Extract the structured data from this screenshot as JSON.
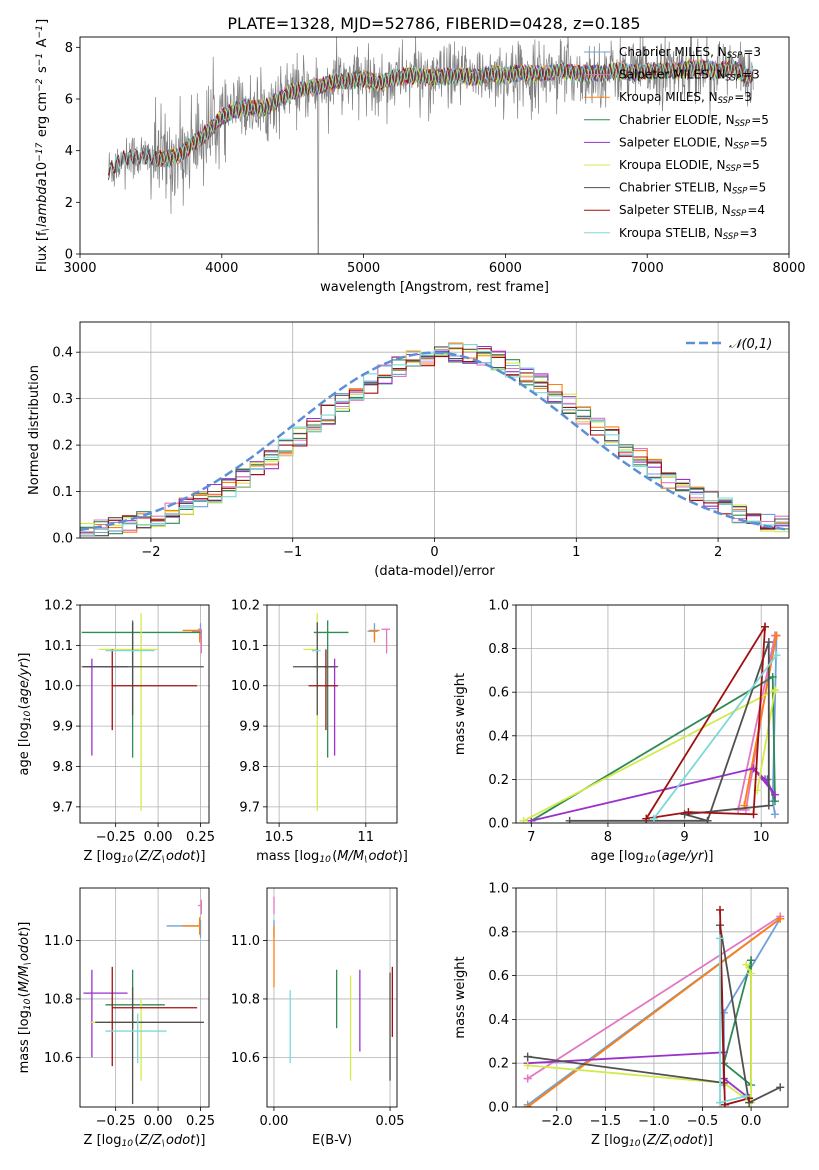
{
  "figure": {
    "title": "PLATE=1328, MJD=52786, FIBERID=0428, z=0.185"
  },
  "model_colors": {
    "Chabrier MILES": "#6fa0d8",
    "Salpeter MILES": "#e377c2",
    "Kroupa MILES": "#ff7f0e",
    "Chabrier ELODIE": "#2e8b57",
    "Salpeter ELODIE": "#9932cc",
    "Kroupa ELODIE": "#d4ea4a",
    "Chabrier STELIB": "#505050",
    "Salpeter STELIB": "#a01010",
    "Kroupa STELIB": "#7fd8d8"
  },
  "chart_data": [
    {
      "id": "spectrum",
      "type": "line",
      "title": "PLATE=1328, MJD=52786, FIBERID=0428, z=0.185",
      "xlabel": "wavelength [Angstrom, rest frame]",
      "ylabel": "Flux [f$_\\lambda$10$^{-17}$ erg cm$^{-2}$ s$^{-1}$ A$^{-1}$]",
      "xlim": [
        3000,
        8000
      ],
      "ylim": [
        0,
        8.4
      ],
      "xticks": [
        3000,
        4000,
        5000,
        6000,
        7000,
        8000
      ],
      "yticks": [
        0,
        2,
        4,
        6,
        8
      ],
      "grid": false,
      "legend": "top-right",
      "series": [
        {
          "name": "Chabrier MILES, N$_{SSP}$=3",
          "model": "Chabrier MILES"
        },
        {
          "name": "Salpeter MILES, N$_{SSP}$=3",
          "model": "Salpeter MILES"
        },
        {
          "name": "Kroupa MILES, N$_{SSP}$=3",
          "model": "Kroupa MILES"
        },
        {
          "name": "Chabrier ELODIE, N$_{SSP}$=5",
          "model": "Chabrier ELODIE"
        },
        {
          "name": "Salpeter ELODIE, N$_{SSP}$=5",
          "model": "Salpeter ELODIE"
        },
        {
          "name": "Kroupa ELODIE, N$_{SSP}$=5",
          "model": "Kroupa ELODIE"
        },
        {
          "name": "Chabrier STELIB, N$_{SSP}$=5",
          "model": "Chabrier STELIB"
        },
        {
          "name": "Salpeter STELIB, N$_{SSP}$=4",
          "model": "Salpeter STELIB"
        },
        {
          "name": "Kroupa STELIB, N$_{SSP}$=3",
          "model": "Kroupa STELIB"
        }
      ],
      "observed_color": "#808080",
      "continuum": {
        "x": [
          3200,
          3300,
          3400,
          3500,
          3600,
          3700,
          3800,
          3900,
          4000,
          4100,
          4200,
          4300,
          4400,
          4500,
          4600,
          4700,
          4800,
          4900,
          5000,
          5100,
          5200,
          5300,
          5400,
          5500,
          5600,
          5700,
          5800,
          5900,
          6000,
          6100,
          6200,
          6300,
          6400,
          6500,
          6600,
          6700,
          6800,
          6900,
          7000,
          7100,
          7200,
          7300,
          7400,
          7500,
          7600,
          7700,
          7750
        ],
        "y": [
          3.2,
          3.7,
          3.8,
          3.7,
          3.7,
          3.8,
          4.3,
          4.7,
          5.3,
          5.6,
          5.7,
          5.6,
          6.0,
          6.3,
          6.4,
          6.5,
          6.7,
          6.7,
          6.8,
          6.6,
          6.8,
          6.9,
          6.9,
          6.8,
          6.9,
          6.9,
          6.8,
          7.0,
          6.9,
          7.0,
          7.0,
          7.0,
          7.1,
          7.0,
          7.0,
          7.0,
          7.1,
          7.0,
          7.1,
          7.1,
          7.1,
          7.2,
          7.2,
          7.1,
          7.2,
          6.9,
          6.9
        ]
      }
    },
    {
      "id": "residuals",
      "type": "line",
      "xlabel": "(data-model)/error",
      "ylabel": "Normed distribution",
      "xlim": [
        -2.5,
        2.5
      ],
      "ylim": [
        0,
        0.465
      ],
      "xticks": [
        -2,
        -1,
        0,
        1,
        2
      ],
      "yticks": [
        0.0,
        0.1,
        0.2,
        0.3,
        0.4
      ],
      "grid": true,
      "legend": "top-right",
      "gaussian": {
        "name": "$\\mathcal{N}(0,1)$",
        "mu": 0,
        "sigma": 1,
        "color": "#5b8fd6"
      },
      "bins": {
        "start": -2.5,
        "width": 0.1,
        "count": 50
      }
    },
    {
      "id": "Z-age",
      "type": "scatter",
      "xlabel": "Z [log$_{10}$($Z/Z_\\odot$)]",
      "ylabel": "age  [log$_{10}$($age/yr$)]",
      "xlim": [
        -0.46,
        0.3
      ],
      "ylim": [
        9.66,
        10.2
      ],
      "xticks": [
        -0.25,
        0.0,
        0.25
      ],
      "xtick_labels": [
        "−0.25",
        "0.00",
        "0.25"
      ],
      "yticks": [
        9.7,
        9.8,
        9.9,
        10.0,
        10.1,
        10.2
      ],
      "grid": true,
      "points": [
        {
          "model": "Chabrier MILES",
          "x": 0.25,
          "y": 10.135,
          "xerr": [
            0.05,
            0.0
          ],
          "yerr": [
            0.02,
            0.02
          ]
        },
        {
          "model": "Salpeter MILES",
          "x": 0.255,
          "y": 10.14,
          "xerr": [
            0.02,
            0.0
          ],
          "yerr": [
            0.06,
            0.0
          ]
        },
        {
          "model": "Kroupa MILES",
          "x": 0.245,
          "y": 10.137,
          "xerr": [
            0.1,
            0.0
          ],
          "yerr": [
            0.03,
            0.0
          ]
        },
        {
          "model": "Chabrier ELODIE",
          "x": -0.15,
          "y": 10.132,
          "xerr": [
            0.3,
            0.4
          ],
          "yerr": [
            0.31,
            0.03
          ]
        },
        {
          "model": "Salpeter ELODIE",
          "x": -0.39,
          "y": 10.047,
          "xerr": [
            0.05,
            0.21
          ],
          "yerr": [
            0.22,
            0.02
          ]
        },
        {
          "model": "Kroupa ELODIE",
          "x": -0.1,
          "y": 10.09,
          "xerr": [
            0.25,
            0.1
          ],
          "yerr": [
            0.4,
            0.09
          ]
        },
        {
          "model": "Chabrier STELIB",
          "x": -0.15,
          "y": 10.047,
          "xerr": [
            0.3,
            0.42
          ],
          "yerr": [
            0.12,
            0.11
          ]
        },
        {
          "model": "Salpeter STELIB",
          "x": -0.27,
          "y": 10.0,
          "xerr": [
            0.0,
            0.5
          ],
          "yerr": [
            0.11,
            0.09
          ]
        },
        {
          "model": "Kroupa STELIB",
          "x": -0.12,
          "y": 10.087,
          "xerr": [
            0.19,
            0.1
          ],
          "yerr": [
            0.0,
            0.0
          ]
        }
      ]
    },
    {
      "id": "mass-age",
      "type": "scatter",
      "xlabel": "mass [log$_{10}$($M/M_\\odot$)]",
      "ylabel": "",
      "xlim": [
        10.43,
        11.18
      ],
      "ylim": [
        9.66,
        10.2
      ],
      "xticks": [
        10.5,
        11.0
      ],
      "yticks": [
        9.7,
        9.8,
        9.9,
        10.0,
        10.1,
        10.2
      ],
      "grid": true,
      "points": [
        {
          "model": "Chabrier MILES",
          "x": 11.05,
          "y": 10.135,
          "xerr": [
            0.04,
            0.02
          ],
          "yerr": [
            0.02,
            0.02
          ]
        },
        {
          "model": "Salpeter MILES",
          "x": 11.12,
          "y": 10.14,
          "xerr": [
            0.03,
            0.02
          ],
          "yerr": [
            0.06,
            0.0
          ]
        },
        {
          "model": "Kroupa MILES",
          "x": 11.05,
          "y": 10.137,
          "xerr": [
            0.03,
            0.03
          ],
          "yerr": [
            0.03,
            0.0
          ]
        },
        {
          "model": "Chabrier ELODIE",
          "x": 10.78,
          "y": 10.132,
          "xerr": [
            0.08,
            0.12
          ],
          "yerr": [
            0.31,
            0.03
          ]
        },
        {
          "model": "Salpeter ELODIE",
          "x": 10.82,
          "y": 10.047,
          "xerr": [
            0.12,
            0.0
          ],
          "yerr": [
            0.22,
            0.02
          ]
        },
        {
          "model": "Kroupa ELODIE",
          "x": 10.72,
          "y": 10.09,
          "xerr": [
            0.08,
            0.0
          ],
          "yerr": [
            0.4,
            0.09
          ]
        },
        {
          "model": "Chabrier STELIB",
          "x": 10.72,
          "y": 10.047,
          "xerr": [
            0.14,
            0.12
          ],
          "yerr": [
            0.12,
            0.11
          ]
        },
        {
          "model": "Salpeter STELIB",
          "x": 10.77,
          "y": 10.0,
          "xerr": [
            0.1,
            0.07
          ],
          "yerr": [
            0.11,
            0.09
          ]
        },
        {
          "model": "Kroupa STELIB",
          "x": 10.69,
          "y": 10.087,
          "xerr": [
            0.0,
            0.05
          ],
          "yerr": [
            0.0,
            0.0
          ]
        }
      ]
    },
    {
      "id": "weight-age",
      "type": "line",
      "xlabel": "age  [log$_{10}$($age/yr$)]",
      "ylabel": "mass weight",
      "xlim": [
        6.8,
        10.35
      ],
      "ylim": [
        0,
        1.0
      ],
      "xticks": [
        7,
        8,
        9,
        10
      ],
      "yticks": [
        0.0,
        0.2,
        0.4,
        0.6,
        0.8,
        1.0
      ],
      "grid": true,
      "series": [
        {
          "model": "Chabrier MILES",
          "x": [
            10.2,
            10.15,
            10.18
          ],
          "y": [
            0.86,
            0.1,
            0.04
          ]
        },
        {
          "model": "Salpeter MILES",
          "x": [
            10.18,
            9.8,
            9.7,
            10.18
          ],
          "y": [
            0.86,
            0.06,
            0.06,
            0.86
          ]
        },
        {
          "model": "Kroupa MILES",
          "x": [
            10.2,
            9.78,
            10.2
          ],
          "y": [
            0.86,
            0.08,
            0.86
          ]
        },
        {
          "model": "Chabrier ELODIE",
          "x": [
            7.0,
            10.15,
            10.18,
            10.08
          ],
          "y": [
            0.01,
            0.67,
            0.1,
            0.2
          ]
        },
        {
          "model": "Salpeter ELODIE",
          "x": [
            7.0,
            9.9,
            10.18,
            10.05,
            9.9
          ],
          "y": [
            0.01,
            0.25,
            0.13,
            0.2,
            0.25
          ]
        },
        {
          "model": "Kroupa ELODIE",
          "x": [
            6.9,
            10.18,
            9.95,
            10.18
          ],
          "y": [
            0.01,
            0.61,
            0.15,
            0.61
          ]
        },
        {
          "model": "Chabrier STELIB",
          "x": [
            7.5,
            9.3,
            10.1,
            10.1,
            9.0,
            9.3
          ],
          "y": [
            0.01,
            0.01,
            0.83,
            0.08,
            0.04,
            0.01
          ]
        },
        {
          "model": "Salpeter STELIB",
          "x": [
            10.05,
            8.5,
            9.05,
            9.9,
            10.05
          ],
          "y": [
            0.9,
            0.02,
            0.05,
            0.04,
            0.9
          ]
        },
        {
          "model": "Kroupa STELIB",
          "x": [
            10.2,
            8.6,
            10.2
          ],
          "y": [
            0.77,
            0.02,
            0.77
          ]
        }
      ]
    },
    {
      "id": "Z-mass",
      "type": "scatter",
      "xlabel": "Z [log$_{10}$($Z/Z_\\odot$)]",
      "ylabel": "mass [log$_{10}$($M/M_\\odot$)]",
      "xlim": [
        -0.46,
        0.3
      ],
      "ylim": [
        10.43,
        11.18
      ],
      "xticks": [
        -0.25,
        0.0,
        0.25
      ],
      "xtick_labels": [
        "−0.25",
        "0.00",
        "0.25"
      ],
      "yticks": [
        10.6,
        10.8,
        11.0
      ],
      "grid": true,
      "points": [
        {
          "model": "Chabrier MILES",
          "x": 0.25,
          "y": 11.05,
          "xerr": [
            0.2,
            0.0
          ],
          "yerr": [
            0.04,
            0.02
          ]
        },
        {
          "model": "Salpeter MILES",
          "x": 0.255,
          "y": 11.12,
          "xerr": [
            0.02,
            0.0
          ],
          "yerr": [
            0.03,
            0.02
          ]
        },
        {
          "model": "Kroupa MILES",
          "x": 0.245,
          "y": 11.05,
          "xerr": [
            0.1,
            0.0
          ],
          "yerr": [
            0.03,
            0.03
          ]
        },
        {
          "model": "Chabrier ELODIE",
          "x": -0.15,
          "y": 10.78,
          "xerr": [
            0.16,
            0.19
          ],
          "yerr": [
            0.08,
            0.12
          ]
        },
        {
          "model": "Salpeter ELODIE",
          "x": -0.39,
          "y": 10.82,
          "xerr": [
            0.05,
            0.21
          ],
          "yerr": [
            0.22,
            0.08
          ]
        },
        {
          "model": "Kroupa ELODIE",
          "x": -0.1,
          "y": 10.72,
          "xerr": [
            0.3,
            0.03
          ],
          "yerr": [
            0.2,
            0.08
          ]
        },
        {
          "model": "Chabrier STELIB",
          "x": -0.15,
          "y": 10.72,
          "xerr": [
            0.22,
            0.42
          ],
          "yerr": [
            0.28,
            0.12
          ]
        },
        {
          "model": "Salpeter STELIB",
          "x": -0.27,
          "y": 10.77,
          "xerr": [
            0.0,
            0.5
          ],
          "yerr": [
            0.2,
            0.14
          ]
        },
        {
          "model": "Kroupa STELIB",
          "x": -0.12,
          "y": 10.69,
          "xerr": [
            0.19,
            0.17
          ],
          "yerr": [
            0.11,
            0.06
          ]
        }
      ]
    },
    {
      "id": "ebv-mass",
      "type": "scatter",
      "xlabel": "E(B-V)",
      "ylabel": "",
      "xlim": [
        -0.003,
        0.053
      ],
      "ylim": [
        10.43,
        11.18
      ],
      "xticks": [
        0.0,
        0.05
      ],
      "xtick_labels": [
        "0.00",
        "0.05"
      ],
      "yticks": [
        10.6,
        10.8,
        11.0
      ],
      "grid": true,
      "points": [
        {
          "model": "Chabrier MILES",
          "x": 0.0,
          "y": 11.05,
          "yerr": [
            0.04,
            0.02
          ]
        },
        {
          "model": "Salpeter MILES",
          "x": 0.0,
          "y": 11.12,
          "yerr": [
            0.03,
            0.03
          ]
        },
        {
          "model": "Kroupa MILES",
          "x": 0.0,
          "y": 11.0,
          "yerr": [
            0.16,
            0.05
          ]
        },
        {
          "model": "Chabrier ELODIE",
          "x": 0.027,
          "y": 10.78,
          "yerr": [
            0.08,
            0.12
          ]
        },
        {
          "model": "Salpeter ELODIE",
          "x": 0.037,
          "y": 10.78,
          "yerr": [
            0.16,
            0.12
          ]
        },
        {
          "model": "Kroupa ELODIE",
          "x": 0.033,
          "y": 10.72,
          "yerr": [
            0.2,
            0.16
          ]
        },
        {
          "model": "Chabrier STELIB",
          "x": 0.05,
          "y": 10.72,
          "yerr": [
            0.2,
            0.17
          ]
        },
        {
          "model": "Salpeter STELIB",
          "x": 0.051,
          "y": 10.77,
          "yerr": [
            0.1,
            0.14
          ]
        },
        {
          "model": "Kroupa STELIB",
          "x": 0.007,
          "y": 10.72,
          "yerr": [
            0.14,
            0.11
          ]
        }
      ]
    },
    {
      "id": "weight-Z",
      "type": "line",
      "xlabel": "Z [log$_{10}$($Z/Z_\\odot$)]",
      "ylabel": "mass weight",
      "xlim": [
        -2.42,
        0.38
      ],
      "ylim": [
        0,
        1.0
      ],
      "xticks": [
        -2.0,
        -1.5,
        -1.0,
        -0.5,
        0.0
      ],
      "xtick_labels": [
        "−2.0",
        "−1.5",
        "−1.0",
        "−0.5",
        "0.0"
      ],
      "yticks": [
        0.0,
        0.2,
        0.4,
        0.6,
        0.8,
        1.0
      ],
      "grid": true,
      "series": [
        {
          "model": "Chabrier MILES",
          "x": [
            -2.3,
            0.3,
            -0.28,
            -0.28
          ],
          "y": [
            0.01,
            0.86,
            0.43,
            0.1
          ]
        },
        {
          "model": "Salpeter MILES",
          "x": [
            -2.3,
            0.3,
            -2.3
          ],
          "y": [
            0.13,
            0.87,
            0.13
          ]
        },
        {
          "model": "Kroupa MILES",
          "x": [
            -2.3,
            0.3,
            -2.3
          ],
          "y": [
            0.0,
            0.86,
            0.0
          ]
        },
        {
          "model": "Chabrier ELODIE",
          "x": [
            0.0,
            0.0,
            -0.28,
            0.0
          ],
          "y": [
            0.67,
            0.1,
            0.2,
            0.67
          ]
        },
        {
          "model": "Salpeter ELODIE",
          "x": [
            -2.3,
            -0.28,
            -0.28,
            -0.05
          ],
          "y": [
            0.2,
            0.25,
            0.13,
            0.05
          ]
        },
        {
          "model": "Kroupa ELODIE",
          "x": [
            -2.3,
            -0.28,
            0.0,
            0.0,
            -0.05
          ],
          "y": [
            0.19,
            0.11,
            0.02,
            0.61,
            0.65
          ]
        },
        {
          "model": "Chabrier STELIB",
          "x": [
            -2.3,
            -0.28,
            -0.32,
            -0.02,
            0.3
          ],
          "y": [
            0.23,
            0.11,
            0.83,
            0.02,
            0.09
          ]
        },
        {
          "model": "Salpeter STELIB",
          "x": [
            -0.32,
            -0.27,
            -0.02
          ],
          "y": [
            0.9,
            0.01,
            0.04
          ]
        },
        {
          "model": "Kroupa STELIB",
          "x": [
            -0.32,
            -0.32,
            -0.05
          ],
          "y": [
            0.77,
            0.02,
            0.05
          ]
        }
      ]
    }
  ]
}
